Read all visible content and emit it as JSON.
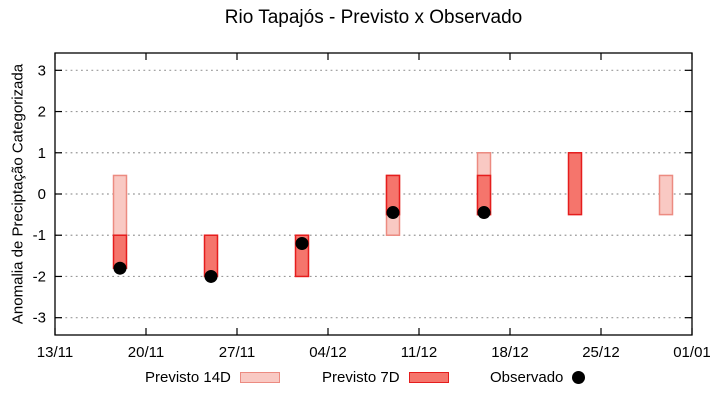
{
  "chart_data": {
    "type": "bar",
    "title": "Rio Tapajós - Previsto x Observado",
    "xlabel": "",
    "ylabel": "Anomalia de Preciptação Categorizada",
    "ylim": [
      -3.42,
      3.42
    ],
    "yticks": [
      3,
      2,
      1,
      0,
      -1,
      -2,
      -3
    ],
    "xtick_labels": [
      "13/11",
      "20/11",
      "27/11",
      "04/12",
      "11/12",
      "18/12",
      "25/12",
      "01/01"
    ],
    "xtick_days": [
      0,
      7,
      14,
      21,
      28,
      35,
      42,
      49
    ],
    "x_total_days": 49,
    "grid": "horizontal-dotted",
    "legend_position": "bottom",
    "colors": {
      "previsto14_fill": "#f9c9c3",
      "previsto14_border": "#ec8density"
    },
    "series": []
  }
}
